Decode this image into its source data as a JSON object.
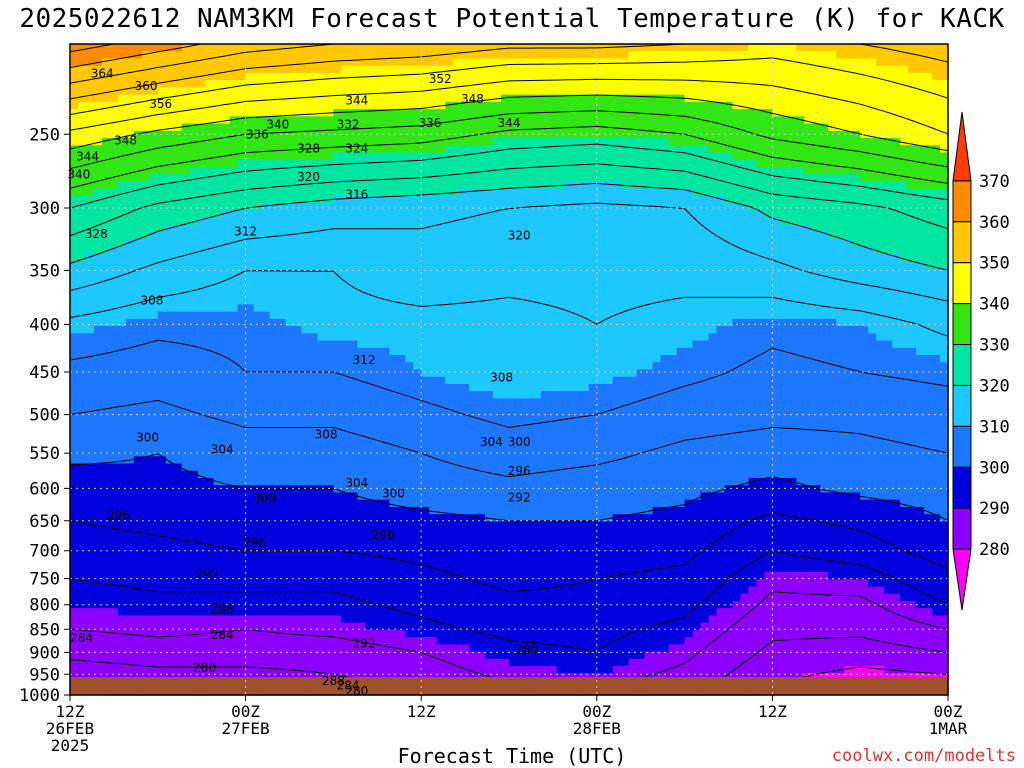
{
  "title": "2025022612 NAM3KM Forecast Potential Temperature (K) for KACK",
  "credit": "coolwx.com/modelts",
  "colors": {
    "ground": "#a0522d",
    "bands": [
      {
        "lo": 270,
        "hi": 280,
        "color": "#ff00ff"
      },
      {
        "lo": 280,
        "hi": 290,
        "color": "#8b00ff"
      },
      {
        "lo": 290,
        "hi": 300,
        "color": "#0000dd"
      },
      {
        "lo": 300,
        "hi": 310,
        "color": "#1e78ff"
      },
      {
        "lo": 310,
        "hi": 320,
        "color": "#1ec8ff"
      },
      {
        "lo": 320,
        "hi": 330,
        "color": "#00e6a0"
      },
      {
        "lo": 330,
        "hi": 340,
        "color": "#32e614"
      },
      {
        "lo": 340,
        "hi": 350,
        "color": "#ffff00"
      },
      {
        "lo": 350,
        "hi": 360,
        "color": "#ffc800"
      },
      {
        "lo": 360,
        "hi": 370,
        "color": "#ff8c00"
      },
      {
        "lo": 370,
        "hi": 380,
        "color": "#ff3c00"
      }
    ]
  },
  "chart_data": {
    "type": "heatmap",
    "title": "2025022612 NAM3KM Forecast Potential Temperature (K) for KACK",
    "xlabel": "Forecast Time (UTC)",
    "ylabel": "",
    "units": "K",
    "y_axis": {
      "scale": "log-pressure (hPa)",
      "range": [
        200,
        1000
      ],
      "ticks": [
        250,
        300,
        350,
        400,
        450,
        500,
        550,
        600,
        650,
        700,
        750,
        800,
        850,
        900,
        950,
        1000
      ]
    },
    "x_axis": {
      "range_hours": [
        0,
        60
      ],
      "ticks": [
        {
          "hour": 0,
          "lines": [
            "12Z",
            "26FEB",
            "2025"
          ]
        },
        {
          "hour": 12,
          "lines": [
            "00Z",
            "27FEB"
          ]
        },
        {
          "hour": 24,
          "lines": [
            "12Z",
            ""
          ]
        },
        {
          "hour": 36,
          "lines": [
            "00Z",
            "28FEB"
          ]
        },
        {
          "hour": 48,
          "lines": [
            "12Z",
            ""
          ]
        },
        {
          "hour": 60,
          "lines": [
            "00Z",
            "1MAR"
          ]
        }
      ]
    },
    "colorbar": {
      "ticks": [
        280,
        290,
        300,
        310,
        320,
        330,
        340,
        350,
        360,
        370
      ]
    },
    "contour_interval": 4,
    "grid": true,
    "theta_profiles": {
      "pressure_levels": [
        200,
        250,
        300,
        350,
        400,
        450,
        500,
        550,
        600,
        650,
        700,
        750,
        800,
        850,
        900,
        950,
        1000
      ],
      "hours": [
        0,
        6,
        12,
        18,
        24,
        30,
        36,
        42,
        48,
        54,
        60
      ],
      "theta": [
        [
          366,
          362,
          358,
          356,
          355,
          353,
          353,
          352,
          350,
          352,
          354
        ],
        [
          343,
          339,
          336,
          335,
          334,
          331,
          330,
          332,
          337,
          340,
          344
        ],
        [
          328,
          323,
          320,
          318,
          317,
          316,
          315,
          316,
          321,
          323,
          326
        ],
        [
          319,
          315,
          312,
          312,
          314,
          313,
          313,
          313,
          315,
          318,
          320
        ],
        [
          311,
          309,
          309,
          311,
          311,
          311,
          312,
          311,
          309,
          310,
          313
        ],
        [
          307,
          306,
          308,
          308,
          310,
          312,
          311,
          309,
          307,
          308,
          309
        ],
        [
          304,
          303,
          305,
          305,
          307,
          309,
          308,
          306,
          305,
          305,
          306
        ],
        [
          301,
          300,
          302,
          302,
          304,
          306,
          305,
          303,
          302,
          303,
          304
        ],
        [
          298,
          299,
          300,
          300,
          302,
          303,
          302,
          301,
          299,
          301,
          302
        ],
        [
          296,
          297,
          298,
          298,
          299,
          300,
          300,
          299,
          295,
          297,
          300
        ],
        [
          294,
          295,
          296,
          296,
          297,
          298,
          298,
          297,
          292,
          294,
          298
        ],
        [
          292,
          293,
          293,
          293,
          295,
          297,
          296,
          295,
          289,
          290,
          295
        ],
        [
          290,
          291,
          291,
          291,
          293,
          295,
          295,
          293,
          287,
          287,
          292
        ],
        [
          288,
          289,
          288,
          289,
          291,
          293,
          293,
          291,
          285,
          285,
          288
        ],
        [
          285,
          286,
          286,
          286,
          288,
          291,
          292,
          289,
          283,
          282,
          284
        ],
        [
          282,
          283,
          283,
          284,
          286,
          289,
          290,
          287,
          281,
          279,
          280
        ],
        [
          279,
          280,
          281,
          282,
          283,
          286,
          287,
          284,
          279,
          277,
          277
        ]
      ]
    },
    "contour_labels": [
      {
        "value": "364",
        "hour": 2.2,
        "p": 215
      },
      {
        "value": "360",
        "hour": 5.2,
        "p": 222
      },
      {
        "value": "356",
        "hour": 6.2,
        "p": 232
      },
      {
        "value": "348",
        "hour": 3.8,
        "p": 254
      },
      {
        "value": "344",
        "hour": 1.2,
        "p": 264
      },
      {
        "value": "340",
        "hour": 0.6,
        "p": 276
      },
      {
        "value": "328",
        "hour": 1.8,
        "p": 320
      },
      {
        "value": "340",
        "hour": 14.2,
        "p": 244
      },
      {
        "value": "336",
        "hour": 12.8,
        "p": 250
      },
      {
        "value": "328",
        "hour": 16.3,
        "p": 259
      },
      {
        "value": "320",
        "hour": 16.3,
        "p": 278
      },
      {
        "value": "344",
        "hour": 19.6,
        "p": 230
      },
      {
        "value": "332",
        "hour": 19.0,
        "p": 244
      },
      {
        "value": "324",
        "hour": 19.6,
        "p": 259
      },
      {
        "value": "316",
        "hour": 19.6,
        "p": 290
      },
      {
        "value": "352",
        "hour": 25.3,
        "p": 218
      },
      {
        "value": "348",
        "hour": 27.5,
        "p": 229
      },
      {
        "value": "336",
        "hour": 24.6,
        "p": 243
      },
      {
        "value": "344",
        "hour": 30.0,
        "p": 243
      },
      {
        "value": "312",
        "hour": 12.0,
        "p": 318
      },
      {
        "value": "320",
        "hour": 30.7,
        "p": 321
      },
      {
        "value": "308",
        "hour": 5.6,
        "p": 377
      },
      {
        "value": "312",
        "hour": 20.1,
        "p": 437
      },
      {
        "value": "308",
        "hour": 29.5,
        "p": 456
      },
      {
        "value": "308",
        "hour": 17.5,
        "p": 525
      },
      {
        "value": "300",
        "hour": 5.3,
        "p": 529
      },
      {
        "value": "304",
        "hour": 10.4,
        "p": 545
      },
      {
        "value": "304",
        "hour": 28.8,
        "p": 535
      },
      {
        "value": "300",
        "hour": 30.7,
        "p": 535
      },
      {
        "value": "304",
        "hour": 19.6,
        "p": 592
      },
      {
        "value": "300",
        "hour": 13.3,
        "p": 615
      },
      {
        "value": "300",
        "hour": 22.1,
        "p": 608
      },
      {
        "value": "296",
        "hour": 30.7,
        "p": 575
      },
      {
        "value": "292",
        "hour": 30.7,
        "p": 614
      },
      {
        "value": "296",
        "hour": 3.3,
        "p": 642
      },
      {
        "value": "296",
        "hour": 12.6,
        "p": 686
      },
      {
        "value": "296",
        "hour": 21.4,
        "p": 673
      },
      {
        "value": "292",
        "hour": 9.4,
        "p": 741
      },
      {
        "value": "288",
        "hour": 10.4,
        "p": 808
      },
      {
        "value": "284",
        "hour": 10.4,
        "p": 862
      },
      {
        "value": "284",
        "hour": 0.8,
        "p": 869
      },
      {
        "value": "280",
        "hour": 9.2,
        "p": 935
      },
      {
        "value": "292",
        "hour": 20.1,
        "p": 880
      },
      {
        "value": "288",
        "hour": 18.0,
        "p": 966
      },
      {
        "value": "284",
        "hour": 19.0,
        "p": 977
      },
      {
        "value": "280",
        "hour": 19.6,
        "p": 990
      },
      {
        "value": "280",
        "hour": 31.2,
        "p": 894
      }
    ]
  }
}
